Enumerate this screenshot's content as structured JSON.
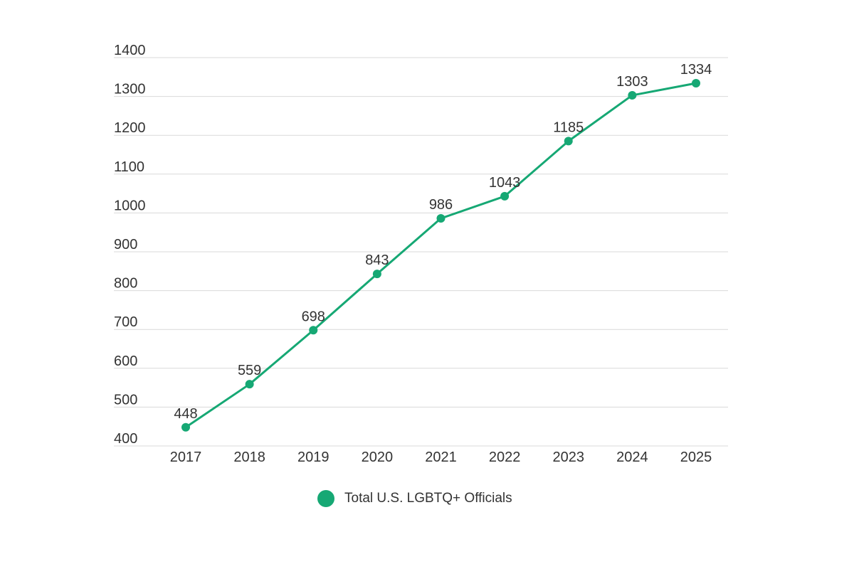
{
  "chart_data": {
    "type": "line",
    "title": "",
    "xlabel": "",
    "ylabel": "",
    "ylim": [
      400,
      1400
    ],
    "yticks": [
      400,
      500,
      600,
      700,
      800,
      900,
      1000,
      1100,
      1200,
      1300,
      1400
    ],
    "grid": true,
    "legend_position": "bottom-center",
    "categories": [
      "2017",
      "2018",
      "2019",
      "2020",
      "2021",
      "2022",
      "2023",
      "2024",
      "2025"
    ],
    "series": [
      {
        "name": "Total U.S. LGBTQ+ Officials",
        "color": "#16a874",
        "values": [
          448,
          559,
          698,
          843,
          986,
          1043,
          1185,
          1303,
          1334
        ]
      }
    ]
  },
  "colors": {
    "series": "#16a874",
    "grid": "#d9d9d9",
    "text": "#333333"
  },
  "legend": {
    "label": "Total U.S. LGBTQ+ Officials",
    "icon": "filled-circle-icon"
  }
}
